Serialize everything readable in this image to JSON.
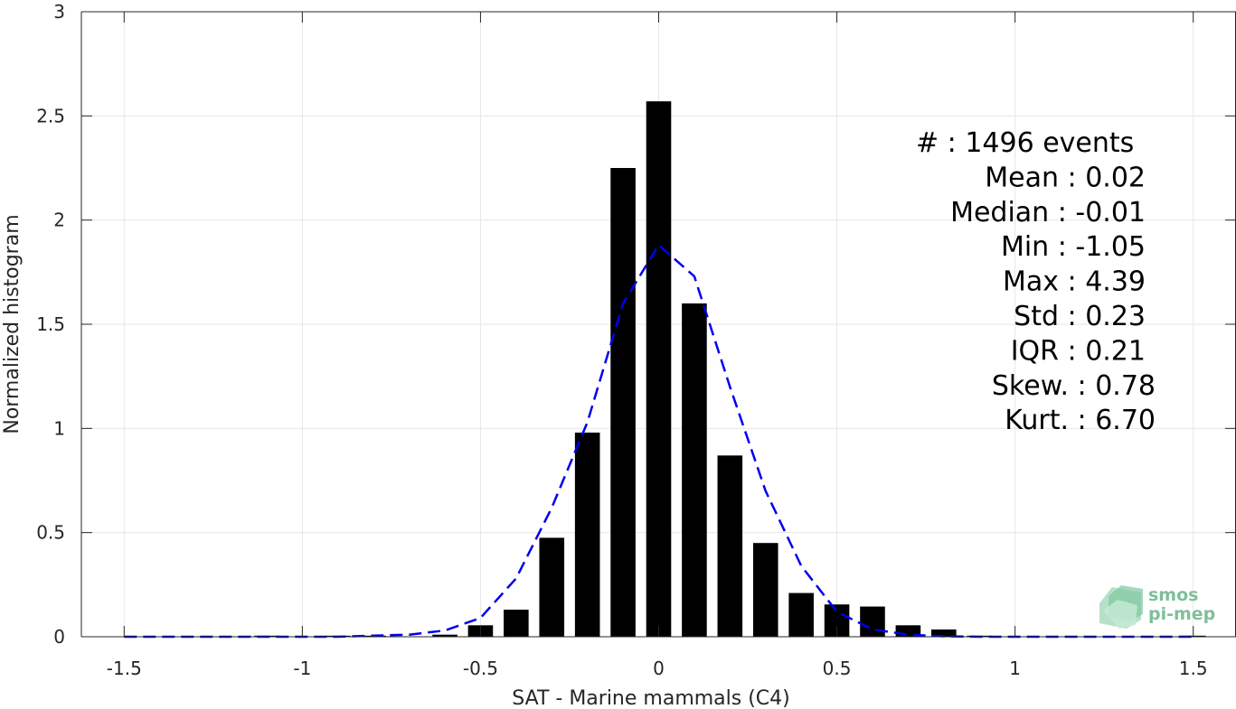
{
  "chart_data": {
    "type": "bar",
    "xlabel": "SAT - Marine mammals (C4)",
    "ylabel": "Normalized histogram",
    "xlim": [
      -1.62,
      1.62
    ],
    "ylim": [
      0,
      3
    ],
    "grid": true,
    "xticks": [
      -1.5,
      -1,
      -0.5,
      0,
      0.5,
      1,
      1.5
    ],
    "xtick_labels": [
      "-1.5",
      "-1",
      "-0.5",
      "0",
      "0.5",
      "1",
      "1.5"
    ],
    "yticks": [
      0,
      0.5,
      1,
      1.5,
      2,
      2.5,
      3
    ],
    "ytick_labels": [
      "0",
      "0.5",
      "1",
      "1.5",
      "2",
      "2.5",
      "3"
    ],
    "bar_width": 0.07,
    "bar_color": "#000000",
    "fit_color": "#0000ee",
    "bins": [
      {
        "x": -1.1,
        "y": 0.005
      },
      {
        "x": -0.9,
        "y": 0.005
      },
      {
        "x": -0.8,
        "y": 0.005
      },
      {
        "x": -0.6,
        "y": 0.01
      },
      {
        "x": -0.5,
        "y": 0.055
      },
      {
        "x": -0.4,
        "y": 0.13
      },
      {
        "x": -0.3,
        "y": 0.475
      },
      {
        "x": -0.2,
        "y": 0.98
      },
      {
        "x": -0.1,
        "y": 2.25
      },
      {
        "x": 0.0,
        "y": 2.57
      },
      {
        "x": 0.1,
        "y": 1.6
      },
      {
        "x": 0.2,
        "y": 0.87
      },
      {
        "x": 0.3,
        "y": 0.45
      },
      {
        "x": 0.4,
        "y": 0.21
      },
      {
        "x": 0.5,
        "y": 0.155
      },
      {
        "x": 0.6,
        "y": 0.145
      },
      {
        "x": 0.7,
        "y": 0.055
      },
      {
        "x": 0.8,
        "y": 0.035
      },
      {
        "x": 0.9,
        "y": 0.005
      },
      {
        "x": 1.5,
        "y": 0.005
      }
    ],
    "fit_curve": {
      "name": "",
      "x": [
        -1.5,
        -1.4,
        -1.3,
        -1.2,
        -1.1,
        -1.0,
        -0.9,
        -0.8,
        -0.7,
        -0.6,
        -0.5,
        -0.4,
        -0.3,
        -0.2,
        -0.1,
        0.0,
        0.1,
        0.2,
        0.3,
        0.4,
        0.5,
        0.6,
        0.7,
        0.8,
        0.9,
        1.0,
        1.1,
        1.2,
        1.3,
        1.4,
        1.5
      ],
      "y": [
        0,
        0,
        0,
        0,
        0,
        0,
        0,
        0.005,
        0.01,
        0.03,
        0.09,
        0.28,
        0.62,
        1.03,
        1.6,
        1.88,
        1.73,
        1.2,
        0.7,
        0.34,
        0.12,
        0.035,
        0.01,
        0.002,
        0,
        0,
        0,
        0,
        0,
        0,
        0
      ]
    },
    "stats": [
      {
        "label": "#  : 1496 events"
      },
      {
        "label": "Mean : 0.02"
      },
      {
        "label": "Median : -0.01"
      },
      {
        "label": "Min : -1.05"
      },
      {
        "label": "Max : 4.39"
      },
      {
        "label": "Std : 0.23"
      },
      {
        "label": "IQR : 0.21"
      },
      {
        "label": "Skew. : 0.78"
      },
      {
        "label": "Kurt. : 6.70"
      }
    ]
  },
  "logo": {
    "line1": "smos",
    "line2": "pi-mep"
  }
}
